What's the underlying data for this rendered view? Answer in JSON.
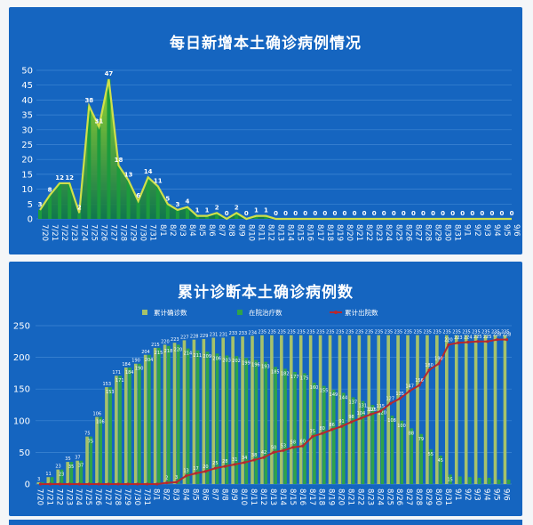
{
  "chart_data": [
    {
      "type": "line",
      "title": "每日新增本土确诊病例情况",
      "ylim": [
        0,
        50
      ],
      "yticks": [
        0,
        5,
        10,
        15,
        20,
        25,
        30,
        35,
        40,
        45,
        50
      ],
      "grid": true,
      "categories": [
        "7/20",
        "7/21",
        "7/22",
        "7/23",
        "7/24",
        "7/25",
        "7/26",
        "7/27",
        "7/28",
        "7/29",
        "7/30",
        "7/31",
        "8/1",
        "8/2",
        "8/3",
        "8/4",
        "8/5",
        "8/6",
        "8/7",
        "8/8",
        "8/9",
        "8/10",
        "8/11",
        "8/12",
        "8/13",
        "8/14",
        "8/15",
        "8/16",
        "8/17",
        "8/18",
        "8/19",
        "8/20",
        "8/21",
        "8/22",
        "8/23",
        "8/24",
        "8/25",
        "8/26",
        "8/27",
        "8/28",
        "8/29",
        "8/30",
        "8/31",
        "9/1",
        "9/2",
        "9/3",
        "9/4",
        "9/5",
        "9/6"
      ],
      "series": [
        {
          "values": [
            3,
            8,
            12,
            12,
            2,
            38,
            31,
            47,
            18,
            13,
            6,
            14,
            11,
            5,
            3,
            4,
            1,
            1,
            2,
            0,
            2,
            0,
            1,
            1,
            0,
            0,
            0,
            0,
            0,
            0,
            0,
            0,
            0,
            0,
            0,
            0,
            0,
            0,
            0,
            0,
            0,
            0,
            0,
            0,
            0,
            0,
            0,
            0,
            0
          ]
        }
      ],
      "data_labels": [
        "3",
        "8",
        "12",
        "12",
        "2",
        "38",
        "31",
        "47",
        "18",
        "13",
        "6",
        "14",
        "11",
        "5",
        "3",
        "4",
        "1",
        "1",
        "2",
        "0",
        "2",
        "0",
        "1",
        "1",
        "0",
        "0",
        "0",
        "0",
        "0",
        "0",
        "0",
        "0",
        "0",
        "0",
        "0",
        "0",
        "0",
        "0",
        "0",
        "0",
        "0",
        "0",
        "0",
        "0",
        "0",
        "0",
        "0",
        "0",
        "0"
      ]
    },
    {
      "type": "bar",
      "title": "累计诊断本土确诊病例数",
      "ylim": [
        0,
        250
      ],
      "yticks": [
        0,
        50,
        100,
        150,
        200,
        250
      ],
      "grid": true,
      "legend_placement": "top",
      "categories": [
        "7/20",
        "7/21",
        "7/22",
        "7/23",
        "7/24",
        "7/25",
        "7/26",
        "7/27",
        "7/28",
        "7/29",
        "7/30",
        "7/31",
        "8/1",
        "8/2",
        "8/3",
        "8/4",
        "8/5",
        "8/6",
        "8/7",
        "8/8",
        "8/9",
        "8/10",
        "8/11",
        "8/12",
        "8/13",
        "8/14",
        "8/15",
        "8/16",
        "8/17",
        "8/18",
        "8/19",
        "8/20",
        "8/21",
        "8/22",
        "8/23",
        "8/24",
        "8/25",
        "8/26",
        "8/27",
        "8/28",
        "8/29",
        "8/30",
        "8/31",
        "9/1",
        "9/2",
        "9/3",
        "9/4",
        "9/5",
        "9/6"
      ],
      "series": [
        {
          "name": "累计确诊数",
          "values": [
            3,
            11,
            23,
            35,
            37,
            75,
            106,
            153,
            171,
            184,
            190,
            204,
            215,
            220,
            223,
            227,
            228,
            229,
            231,
            231,
            233,
            233,
            234,
            235,
            235,
            235,
            235,
            235,
            235,
            235,
            235,
            235,
            235,
            235,
            235,
            235,
            235,
            235,
            235,
            235,
            235,
            235,
            235,
            235,
            235,
            235,
            235,
            235,
            235
          ]
        },
        {
          "name": "在院治疗数",
          "values": [
            3,
            11,
            23,
            35,
            37,
            75,
            106,
            153,
            171,
            184,
            190,
            204,
            215,
            218,
            220,
            214,
            211,
            209,
            206,
            203,
            202,
            199,
            196,
            193,
            185,
            182,
            177,
            175,
            160,
            155,
            149,
            144,
            137,
            131,
            125,
            120,
            108,
            100,
            88,
            79,
            55,
            45,
            15,
            12,
            11,
            10,
            10,
            7,
            7
          ]
        },
        {
          "name": "累计出院数",
          "values": [
            0,
            0,
            0,
            0,
            0,
            0,
            0,
            0,
            0,
            0,
            0,
            0,
            0,
            2,
            3,
            13,
            17,
            20,
            25,
            28,
            31,
            34,
            38,
            42,
            50,
            53,
            58,
            60,
            75,
            80,
            86,
            91,
            98,
            104,
            110,
            115,
            127,
            135,
            147,
            156,
            180,
            190,
            220,
            223,
            224,
            225,
            225,
            228,
            228
          ]
        }
      ]
    }
  ],
  "colors": {
    "panel_bg": "#1565c0",
    "line_main": "#cfe04a",
    "bar_line_gradient_top": "#9fdc2a",
    "bar_confirmed": "#a6c26a",
    "bar_hospital": "#2fa34a",
    "line_discharged": "#b7282e"
  }
}
